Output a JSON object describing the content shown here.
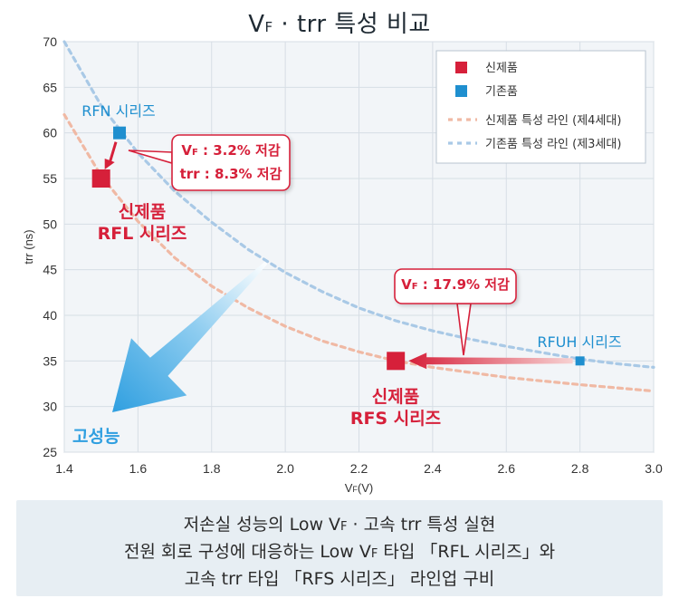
{
  "title": {
    "main": "V",
    "sub": "F",
    "rest": " · trr 특성 비교"
  },
  "chart_data": {
    "type": "scatter",
    "xlabel_main": "V",
    "xlabel_sub": "F",
    "xlabel_unit": "(V)",
    "ylabel": "trr (ns)",
    "xlim": [
      1.4,
      3.0
    ],
    "ylim": [
      25,
      70
    ],
    "xticks": [
      "1.4",
      "1.6",
      "1.8",
      "2.0",
      "2.2",
      "2.4",
      "2.6",
      "2.8",
      "3.0"
    ],
    "yticks": [
      "25",
      "30",
      "35",
      "40",
      "45",
      "50",
      "55",
      "60",
      "65",
      "70"
    ],
    "grid": true,
    "legend_position": "top-right",
    "series": [
      {
        "name": "신제품",
        "color": "#d6203a",
        "points": [
          {
            "x": 1.5,
            "y": 55,
            "label": [
              "신제품",
              "RFL 시리즈"
            ]
          },
          {
            "x": 2.3,
            "y": 35,
            "label": [
              "신제품",
              "RFS 시리즈"
            ]
          }
        ]
      },
      {
        "name": "기존품",
        "color": "#1f8fcf",
        "points": [
          {
            "x": 1.55,
            "y": 60,
            "label": [
              "RFN 시리즈"
            ]
          },
          {
            "x": 2.8,
            "y": 35,
            "label": [
              "RFUH 시리즈"
            ]
          }
        ]
      }
    ],
    "trend_lines": [
      {
        "name": "신제품 특성 라인 (제4세대)",
        "color": "#f0b9a4",
        "x": [
          1.4,
          1.5,
          1.6,
          1.7,
          1.8,
          1.9,
          2.0,
          2.1,
          2.2,
          2.3,
          2.4,
          2.6,
          2.8,
          3.0
        ],
        "y": [
          62,
          55.3,
          50.3,
          46.3,
          43.2,
          40.8,
          38.8,
          37.2,
          36,
          35,
          34.3,
          33.2,
          32.4,
          31.7
        ]
      },
      {
        "name": "기존품 특성 라인 (제3세대)",
        "color": "#a9c9e6",
        "x": [
          1.4,
          1.5,
          1.6,
          1.7,
          1.8,
          1.9,
          2.0,
          2.1,
          2.2,
          2.3,
          2.4,
          2.5,
          2.6,
          2.7,
          2.8,
          2.9,
          3.0
        ],
        "y": [
          70,
          63,
          57.8,
          53.6,
          50.2,
          47.2,
          44.7,
          42.6,
          40.8,
          39.4,
          38.3,
          37.4,
          36.6,
          35.9,
          35.2,
          34.7,
          34.3
        ]
      }
    ],
    "annotations": [
      {
        "id": "rfl",
        "lines": [
          {
            "v": "V",
            "sub": "F",
            "text": " : 3.2% 저감"
          },
          {
            "text": "trr : 8.3% 저감"
          }
        ]
      },
      {
        "id": "rfs",
        "lines": [
          {
            "v": "V",
            "sub": "F",
            "text": " : 17.9% 저감"
          }
        ]
      }
    ],
    "direction_label": "고성능"
  },
  "caption": {
    "line1_a": "저손실 성능의 Low V",
    "line1_sub": "F",
    "line1_b": " · 고속 trr 특성 실현",
    "line2_a": "전원 회로 구성에 대응하는 Low V",
    "line2_sub": "F",
    "line2_b": " 타입 「RFL 시리즈」와",
    "line3": "고속 trr 타입 「RFS 시리즈」 라인업 구비"
  }
}
